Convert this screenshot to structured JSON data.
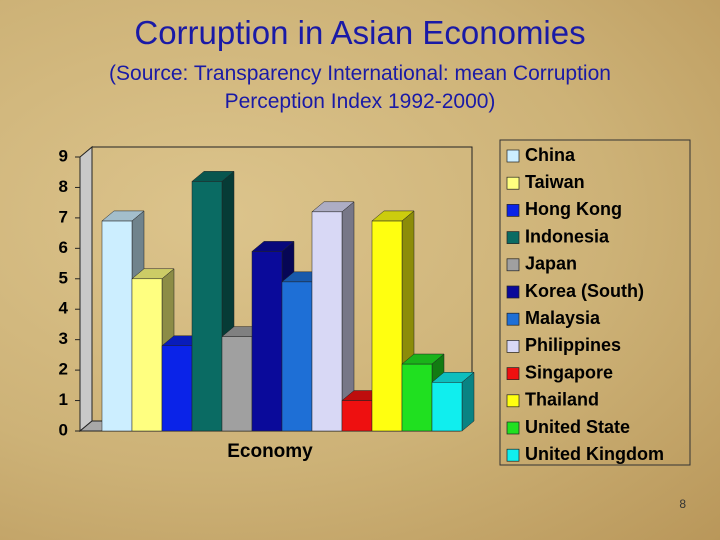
{
  "chart_data": {
    "type": "bar3d",
    "title": "Corruption in Asian Economies",
    "subtitle": "(Source: Transparency International: mean Corruption Perception Index 1992-2000)",
    "x_label": "Economy",
    "ylim": [
      0,
      9
    ],
    "yticks": [
      0,
      1,
      2,
      3,
      4,
      5,
      6,
      7,
      8,
      9
    ],
    "grid": false,
    "legend": "right",
    "series": [
      {
        "name": "China",
        "color": "#cceeff",
        "values": [
          6.9
        ]
      },
      {
        "name": "Taiwan",
        "color": "#ffff80",
        "values": [
          5.0
        ]
      },
      {
        "name": "Hong Kong",
        "color": "#0a23e8",
        "values": [
          2.8
        ]
      },
      {
        "name": "Indonesia",
        "color": "#0a6b63",
        "values": [
          8.2
        ]
      },
      {
        "name": "Japan",
        "color": "#a0a0a0",
        "values": [
          3.1
        ]
      },
      {
        "name": "Korea (South)",
        "color": "#0a0a9a",
        "values": [
          5.9
        ]
      },
      {
        "name": "Malaysia",
        "color": "#1e6fd6",
        "values": [
          4.9
        ]
      },
      {
        "name": "Philippines",
        "color": "#d8d8f5",
        "values": [
          7.2
        ]
      },
      {
        "name": "Singapore",
        "color": "#ee1010",
        "values": [
          1.0
        ]
      },
      {
        "name": "Thailand",
        "color": "#ffff10",
        "values": [
          6.9
        ]
      },
      {
        "name": "United State",
        "color": "#20e020",
        "values": [
          2.2
        ]
      },
      {
        "name": "United Kingdom",
        "color": "#10eeee",
        "values": [
          1.6
        ]
      }
    ]
  },
  "page_number": "8"
}
